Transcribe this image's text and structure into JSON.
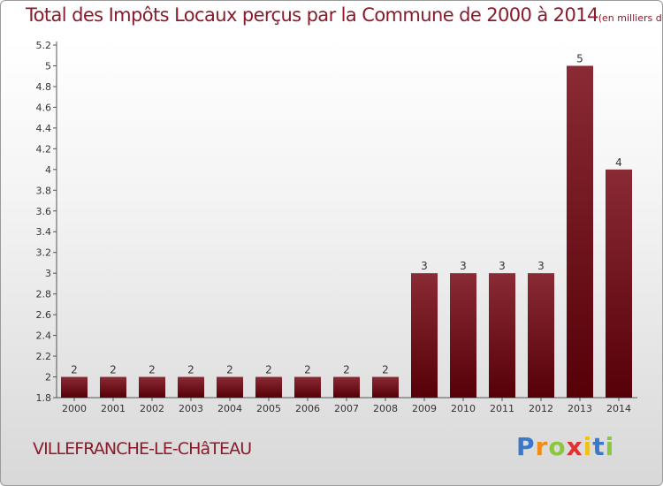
{
  "chart_data": {
    "type": "bar",
    "title": "Total des Impôts Locaux perçus par la Commune de 2000 à 2014",
    "unit": "(en milliers d'€)",
    "categories": [
      "2000",
      "2001",
      "2002",
      "2003",
      "2004",
      "2005",
      "2006",
      "2007",
      "2008",
      "2009",
      "2010",
      "2011",
      "2012",
      "2013",
      "2014"
    ],
    "values": [
      2,
      2,
      2,
      2,
      2,
      2,
      2,
      2,
      2,
      3,
      3,
      3,
      3,
      5,
      4
    ],
    "value_labels": [
      "2",
      "2",
      "2",
      "2",
      "2",
      "2",
      "2",
      "2",
      "2",
      "3",
      "3",
      "3",
      "3",
      "5",
      "4"
    ],
    "ylim": [
      1.8,
      5.2
    ],
    "yticks": [
      "1.8",
      "2",
      "2.2",
      "2.4",
      "2.6",
      "2.8",
      "3",
      "3.2",
      "3.4",
      "3.6",
      "3.8",
      "4",
      "4.2",
      "4.4",
      "4.6",
      "4.8",
      "5",
      "5.2"
    ],
    "grid": false,
    "bar_color": "#7a1522"
  },
  "commune": "VILLEFRANCHE-LE-CHâTEAU",
  "logo": {
    "text": "Proxiti",
    "letters": [
      "P",
      "r",
      "o",
      "x",
      "i",
      "t",
      "i"
    ]
  }
}
